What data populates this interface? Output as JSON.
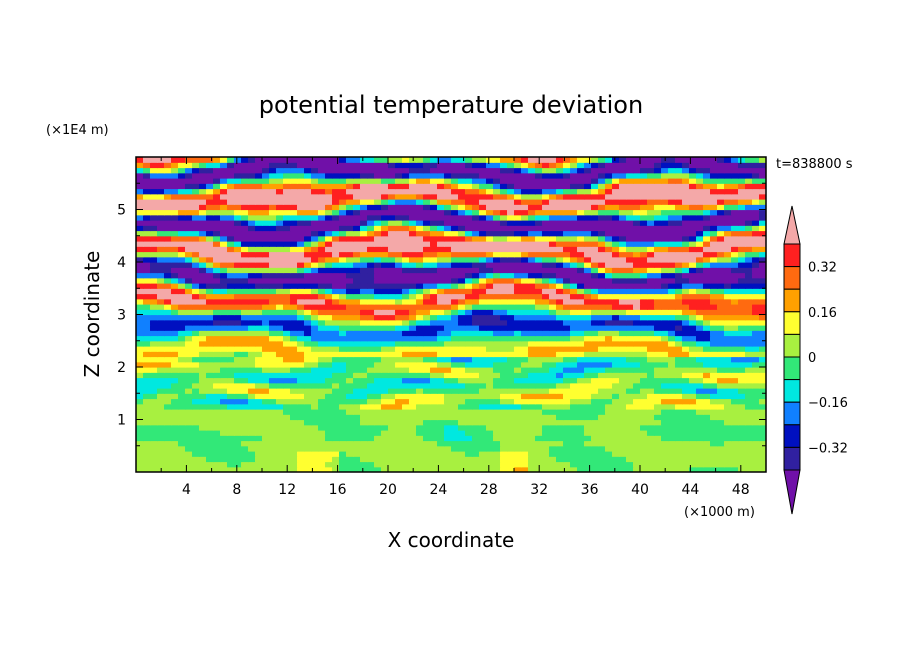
{
  "chart_data": {
    "type": "heatmap",
    "title": "potential temperature deviation",
    "xlabel": "X coordinate",
    "ylabel": "Z coordinate",
    "x_unit": "(×1000 m)",
    "y_unit": "(×1E4 m)",
    "time_label": "t=838800 s",
    "x_range": [
      0,
      50
    ],
    "y_range": [
      0,
      6
    ],
    "x_ticks": [
      "4",
      "8",
      "12",
      "16",
      "20",
      "24",
      "28",
      "32",
      "36",
      "40",
      "44",
      "48"
    ],
    "y_ticks": [
      "1",
      "2",
      "3",
      "4",
      "5"
    ],
    "colorbar": {
      "labels": [
        "0.32",
        "0.16",
        "0",
        "−0.16",
        "−0.32"
      ],
      "levels": [
        0.4,
        0.32,
        0.24,
        0.16,
        0.08,
        0,
        -0.08,
        -0.16,
        -0.24,
        -0.32,
        -0.4
      ],
      "colors": [
        "#f4a8a8",
        "#ff2020",
        "#ff6a10",
        "#ffa000",
        "#ffff30",
        "#a8f040",
        "#32e878",
        "#00e8e0",
        "#1080ff",
        "#0010c0",
        "#3020a0",
        "#7010a8"
      ]
    }
  }
}
